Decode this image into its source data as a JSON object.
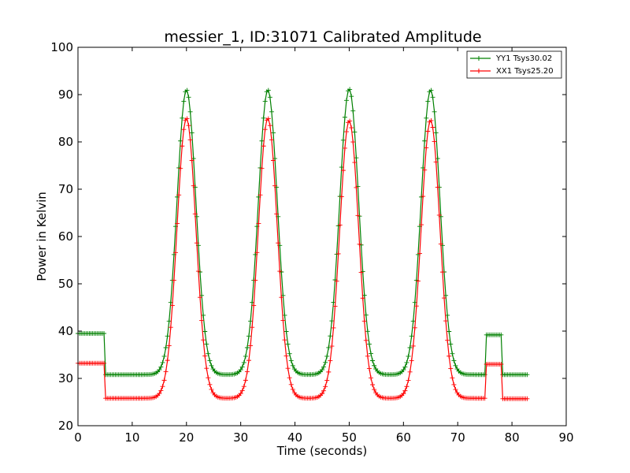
{
  "chart_data": {
    "type": "line",
    "title": "messier_1, ID:31071 Calibrated Amplitude",
    "xlabel": "Time (seconds)",
    "ylabel": "Power in Kelvin",
    "xlim": [
      0,
      90
    ],
    "ylim": [
      20,
      100
    ],
    "xticks": [
      "0",
      "10",
      "20",
      "30",
      "40",
      "50",
      "60",
      "70",
      "80",
      "90"
    ],
    "yticks": [
      "20",
      "30",
      "40",
      "50",
      "60",
      "70",
      "80",
      "90",
      "100"
    ],
    "grid": false,
    "legend_position": "top-right",
    "marker": "plus",
    "series": [
      {
        "name": "YY1 Tsys30.02",
        "color": "#008000",
        "baseline_segments": [
          {
            "t0": 0.0,
            "t1": 5.0,
            "value": 39.5
          },
          {
            "t0": 5.0,
            "t1": 75.0,
            "value": 30.8
          },
          {
            "t0": 75.0,
            "t1": 78.0,
            "value": 39.2
          },
          {
            "t0": 78.0,
            "t1": 83.0,
            "value": 30.8
          }
        ],
        "peaks": [
          {
            "t": 20.0,
            "peak": 91.0
          },
          {
            "t": 35.0,
            "peak": 91.0
          },
          {
            "t": 50.0,
            "peak": 91.2
          },
          {
            "t": 65.0,
            "peak": 91.0
          }
        ]
      },
      {
        "name": "XX1 Tsys25.20",
        "color": "#ff0000",
        "baseline_segments": [
          {
            "t0": 0.0,
            "t1": 5.0,
            "value": 33.2
          },
          {
            "t0": 5.0,
            "t1": 75.0,
            "value": 25.8
          },
          {
            "t0": 75.0,
            "t1": 78.0,
            "value": 33.0
          },
          {
            "t0": 78.0,
            "t1": 83.0,
            "value": 25.7
          }
        ],
        "peaks": [
          {
            "t": 20.0,
            "peak": 85.0
          },
          {
            "t": 35.0,
            "peak": 85.0
          },
          {
            "t": 50.0,
            "peak": 84.5
          },
          {
            "t": 65.0,
            "peak": 84.6
          }
        ]
      }
    ]
  }
}
